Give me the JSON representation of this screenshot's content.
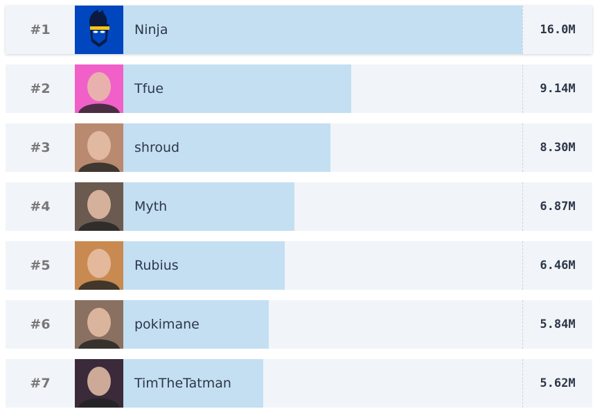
{
  "max_value_millions": 16.0,
  "colors": {
    "row_bg": "#f1f5f9",
    "bar": "#c4dff2",
    "text": "#2d3748",
    "rank": "#777777"
  },
  "items": [
    {
      "rank": "#1",
      "name": "Ninja",
      "value": "16.0M",
      "millions": 16.0,
      "avatar_bg": "#0046be",
      "avatar_icon": "ninja-logo-icon"
    },
    {
      "rank": "#2",
      "name": "Tfue",
      "value": "9.14M",
      "millions": 9.14,
      "avatar_bg": "#f060c8",
      "avatar_icon": "avatar-photo"
    },
    {
      "rank": "#3",
      "name": "shroud",
      "value": "8.30M",
      "millions": 8.3,
      "avatar_bg": "#b98a70",
      "avatar_icon": "avatar-photo"
    },
    {
      "rank": "#4",
      "name": "Myth",
      "value": "6.87M",
      "millions": 6.87,
      "avatar_bg": "#6a5a50",
      "avatar_icon": "avatar-photo"
    },
    {
      "rank": "#5",
      "name": "Rubius",
      "value": "6.46M",
      "millions": 6.46,
      "avatar_bg": "#c88a50",
      "avatar_icon": "avatar-photo"
    },
    {
      "rank": "#6",
      "name": "pokimane",
      "value": "5.84M",
      "millions": 5.84,
      "avatar_bg": "#8a7060",
      "avatar_icon": "avatar-photo"
    },
    {
      "rank": "#7",
      "name": "TimTheTatman",
      "value": "5.62M",
      "millions": 5.62,
      "avatar_bg": "#3a2a3a",
      "avatar_icon": "avatar-photo"
    }
  ]
}
